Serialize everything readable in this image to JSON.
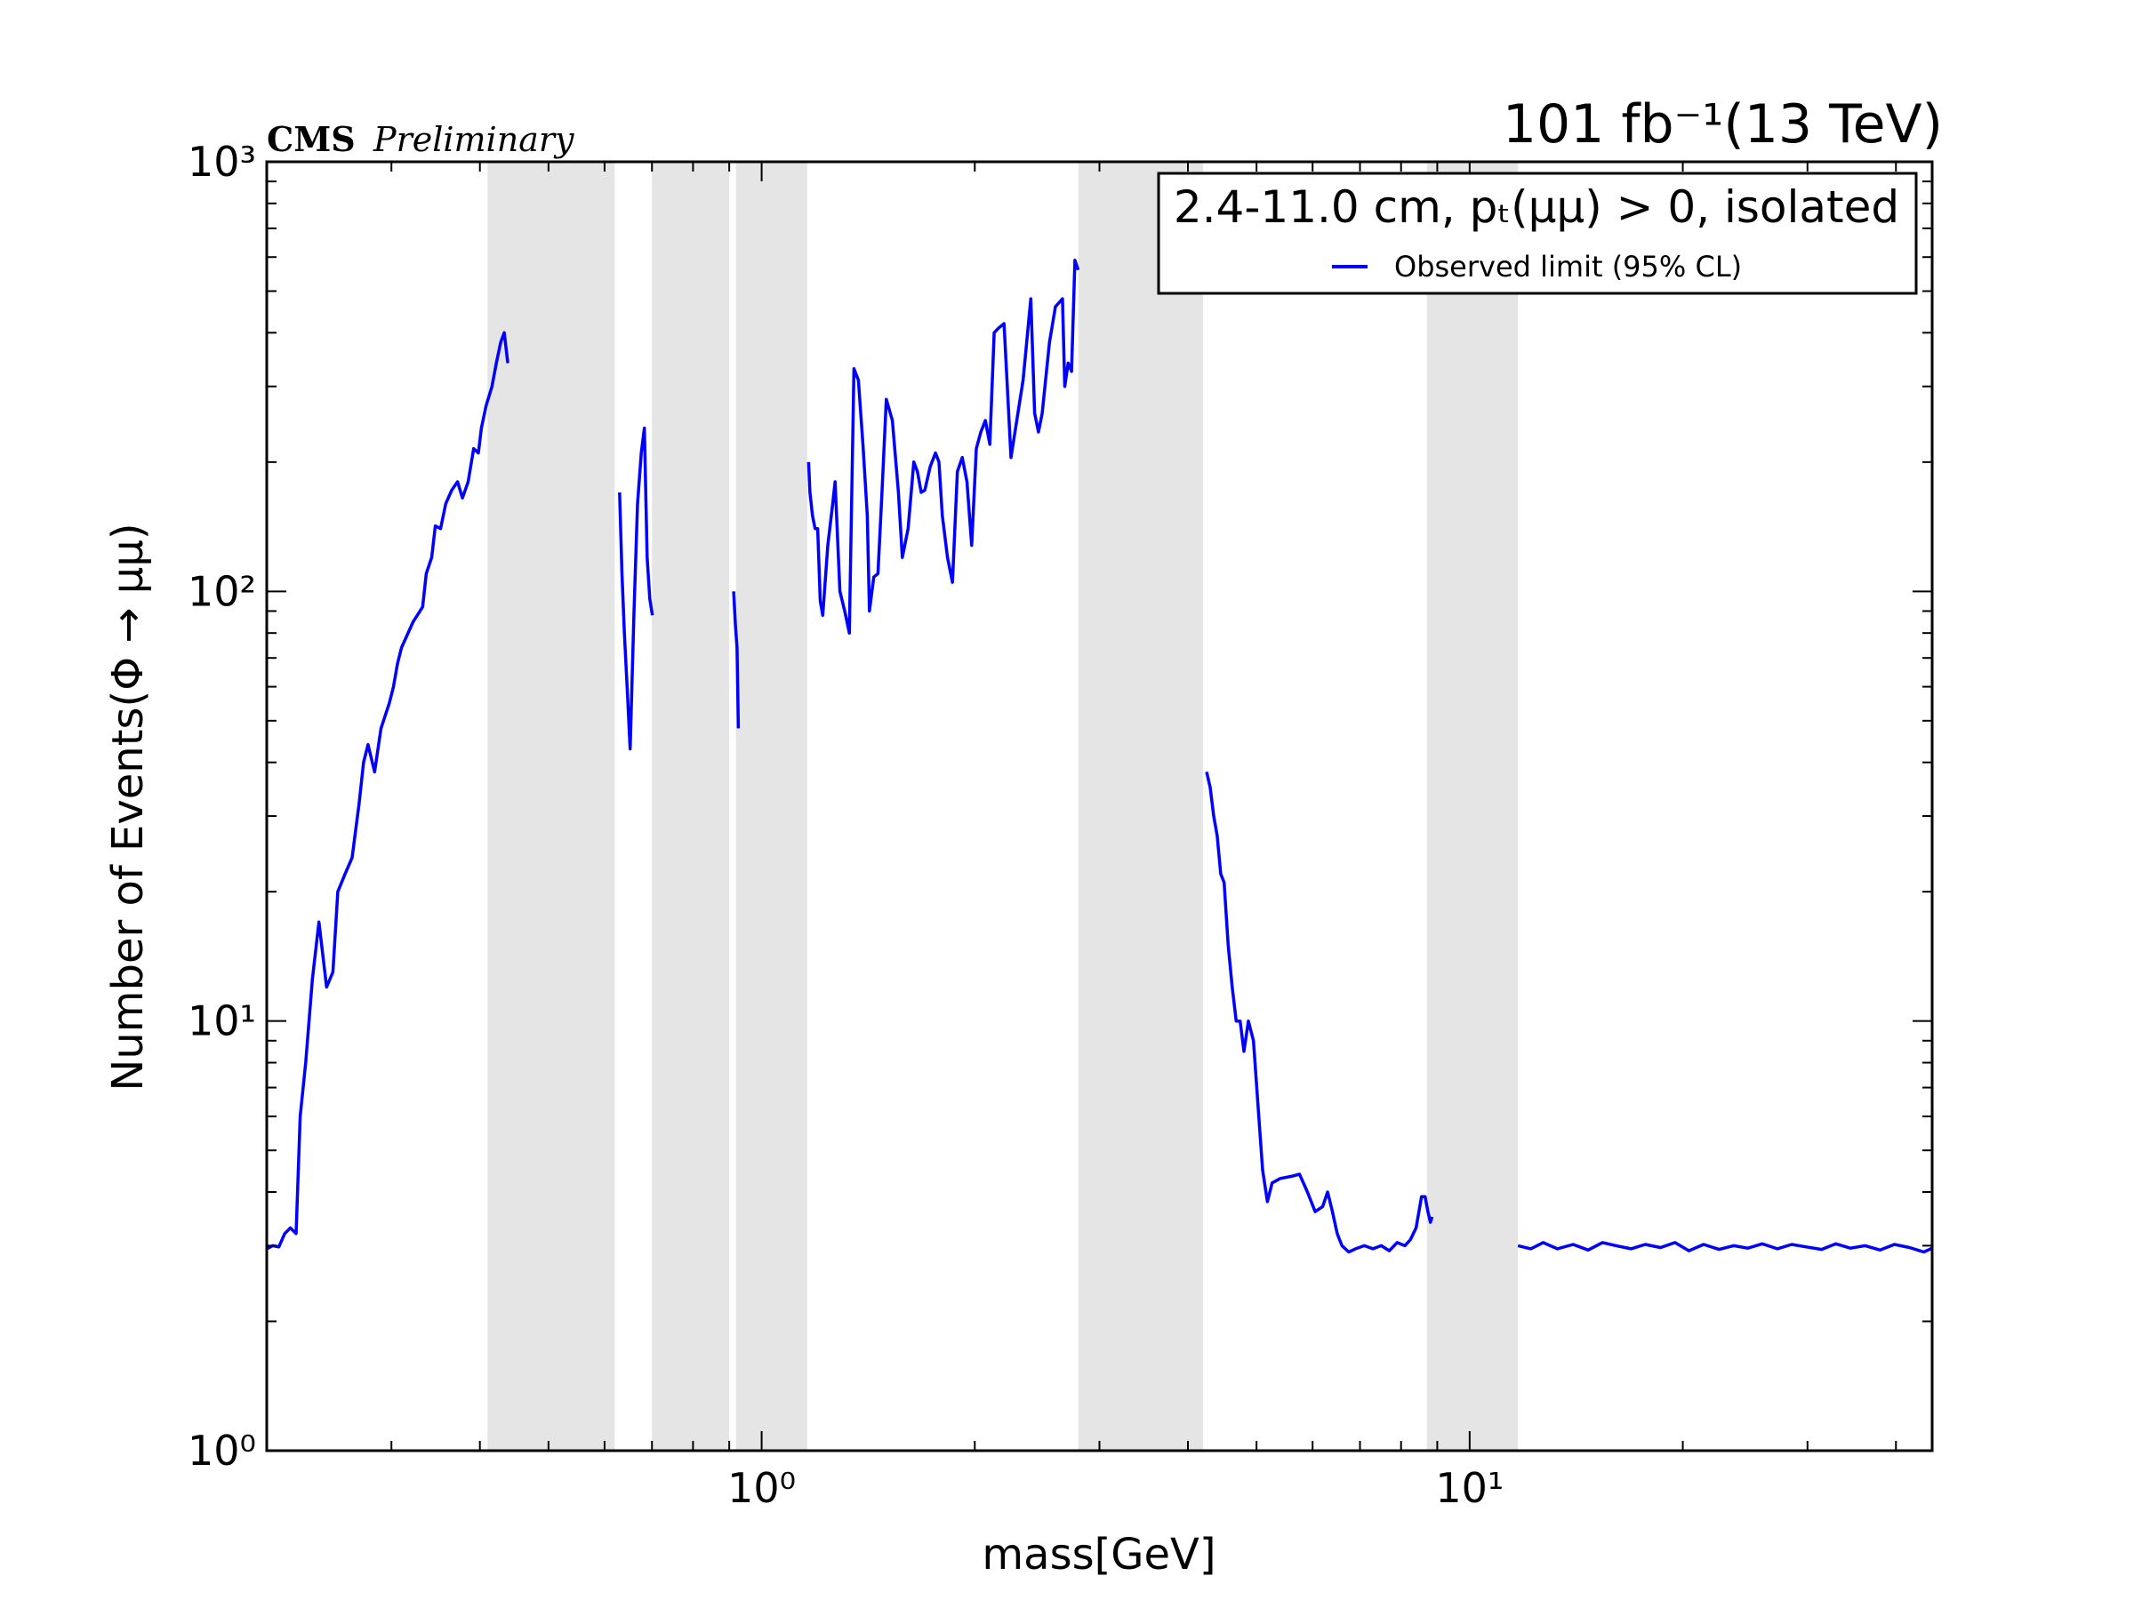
{
  "chart_data": {
    "type": "line",
    "title_left_bold": "CMS",
    "title_left_italic": "Preliminary",
    "title_right": "101 fb⁻¹(13 TeV)",
    "xlabel": "mass[GeV]",
    "ylabel": "Number of Events(Φ →  μμ)",
    "xscale": "log",
    "yscale": "log",
    "xlim": [
      0.2,
      45
    ],
    "ylim": [
      1,
      1000
    ],
    "xticks": [
      {
        "value": 1,
        "label": "10⁰"
      },
      {
        "value": 10,
        "label": "10¹"
      }
    ],
    "yticks": [
      {
        "value": 1,
        "label": "10⁰"
      },
      {
        "value": 10,
        "label": "10¹"
      },
      {
        "value": 100,
        "label": "10²"
      },
      {
        "value": 1000,
        "label": "10³"
      }
    ],
    "legend": {
      "title": "2.4-11.0 cm, pₜ(μμ) > 0, isolated",
      "entries": [
        {
          "label": "Observed limit (95% CL)",
          "color": "#0000ff"
        }
      ],
      "position": "top-right"
    },
    "excluded_bands": [
      [
        0.41,
        0.62
      ],
      [
        0.7,
        0.9
      ],
      [
        0.92,
        1.16
      ],
      [
        2.8,
        4.2
      ],
      [
        8.7,
        11.7
      ]
    ],
    "series": [
      {
        "name": "Observed limit (95% CL)",
        "color": "#0000ff",
        "segments": [
          [
            [
              0.2,
              2.95
            ],
            [
              0.204,
              3.0
            ],
            [
              0.208,
              2.98
            ],
            [
              0.212,
              3.2
            ],
            [
              0.216,
              3.3
            ],
            [
              0.22,
              3.2
            ],
            [
              0.223,
              6.0
            ],
            [
              0.227,
              8.0
            ],
            [
              0.232,
              12.5
            ],
            [
              0.237,
              17.0
            ],
            [
              0.243,
              12.0
            ],
            [
              0.248,
              13.0
            ],
            [
              0.252,
              20.0
            ],
            [
              0.258,
              22.0
            ],
            [
              0.264,
              24.0
            ],
            [
              0.27,
              32.0
            ],
            [
              0.274,
              40.0
            ],
            [
              0.278,
              44.0
            ],
            [
              0.284,
              38.0
            ],
            [
              0.29,
              48.0
            ],
            [
              0.298,
              55.0
            ],
            [
              0.302,
              60.0
            ],
            [
              0.306,
              68.0
            ],
            [
              0.31,
              74.0
            ],
            [
              0.322,
              85.0
            ],
            [
              0.332,
              92.0
            ],
            [
              0.336,
              110.0
            ],
            [
              0.342,
              120.0
            ],
            [
              0.346,
              142.0
            ],
            [
              0.352,
              140.0
            ],
            [
              0.358,
              160.0
            ],
            [
              0.365,
              172.0
            ],
            [
              0.372,
              180.0
            ],
            [
              0.378,
              165.0
            ],
            [
              0.385,
              180.0
            ],
            [
              0.392,
              215.0
            ],
            [
              0.398,
              210.0
            ],
            [
              0.402,
              240.0
            ],
            [
              0.408,
              270.0
            ],
            [
              0.416,
              300.0
            ],
            [
              0.422,
              340.0
            ],
            [
              0.428,
              380.0
            ],
            [
              0.433,
              400.0
            ],
            [
              0.438,
              340.0
            ]
          ],
          [
            [
              0.63,
              170.0
            ],
            [
              0.635,
              110.0
            ],
            [
              0.64,
              80.0
            ],
            [
              0.647,
              56.0
            ],
            [
              0.652,
              43.0
            ],
            [
              0.66,
              88.0
            ],
            [
              0.668,
              160.0
            ],
            [
              0.676,
              210.0
            ],
            [
              0.683,
              240.0
            ],
            [
              0.689,
              120.0
            ],
            [
              0.695,
              96.0
            ],
            [
              0.701,
              88.0
            ]
          ],
          [
            [
              0.913,
              100.0
            ],
            [
              0.918,
              84.0
            ],
            [
              0.923,
              74.0
            ],
            [
              0.927,
              48.0
            ]
          ],
          [
            [
              1.165,
              200.0
            ],
            [
              1.17,
              170.0
            ],
            [
              1.18,
              150.0
            ],
            [
              1.19,
              140.0
            ],
            [
              1.2,
              140.0
            ],
            [
              1.21,
              95.0
            ],
            [
              1.22,
              88.0
            ],
            [
              1.24,
              128.0
            ],
            [
              1.26,
              160.0
            ],
            [
              1.27,
              180.0
            ],
            [
              1.29,
              100.0
            ],
            [
              1.31,
              90.0
            ],
            [
              1.33,
              80.0
            ],
            [
              1.35,
              330.0
            ],
            [
              1.37,
              310.0
            ],
            [
              1.39,
              220.0
            ],
            [
              1.41,
              150.0
            ],
            [
              1.42,
              90.0
            ],
            [
              1.44,
              108.0
            ],
            [
              1.46,
              110.0
            ],
            [
              1.48,
              175.0
            ],
            [
              1.5,
              280.0
            ],
            [
              1.53,
              250.0
            ],
            [
              1.56,
              170.0
            ],
            [
              1.58,
              120.0
            ],
            [
              1.61,
              140.0
            ],
            [
              1.64,
              200.0
            ],
            [
              1.66,
              190.0
            ],
            [
              1.68,
              170.0
            ],
            [
              1.7,
              172.0
            ],
            [
              1.73,
              195.0
            ],
            [
              1.76,
              210.0
            ],
            [
              1.78,
              200.0
            ],
            [
              1.8,
              150.0
            ],
            [
              1.83,
              120.0
            ],
            [
              1.86,
              105.0
            ],
            [
              1.89,
              190.0
            ],
            [
              1.92,
              205.0
            ],
            [
              1.95,
              180.0
            ],
            [
              1.98,
              128.0
            ],
            [
              2.01,
              215.0
            ],
            [
              2.04,
              235.0
            ],
            [
              2.07,
              250.0
            ],
            [
              2.1,
              220.0
            ],
            [
              2.13,
              400.0
            ],
            [
              2.16,
              410.0
            ],
            [
              2.2,
              420.0
            ],
            [
              2.25,
              205.0
            ],
            [
              2.34,
              310.0
            ],
            [
              2.4,
              480.0
            ],
            [
              2.43,
              260.0
            ],
            [
              2.46,
              235.0
            ],
            [
              2.49,
              260.0
            ],
            [
              2.55,
              380.0
            ],
            [
              2.6,
              460.0
            ],
            [
              2.66,
              480.0
            ],
            [
              2.68,
              300.0
            ],
            [
              2.71,
              340.0
            ],
            [
              2.74,
              325.0
            ],
            [
              2.77,
              590.0
            ],
            [
              2.8,
              560.0
            ]
          ],
          [
            [
              4.25,
              38.0
            ],
            [
              4.3,
              35.0
            ],
            [
              4.35,
              30.0
            ],
            [
              4.4,
              27.0
            ],
            [
              4.45,
              22.0
            ],
            [
              4.5,
              21.0
            ],
            [
              4.56,
              15.0
            ],
            [
              4.62,
              12.0
            ],
            [
              4.68,
              10.0
            ],
            [
              4.74,
              10.0
            ],
            [
              4.8,
              8.5
            ],
            [
              4.87,
              10.0
            ],
            [
              4.95,
              9.0
            ],
            [
              5.02,
              6.5
            ],
            [
              5.1,
              4.5
            ],
            [
              5.18,
              3.8
            ],
            [
              5.26,
              4.2
            ],
            [
              5.4,
              4.3
            ],
            [
              5.6,
              4.35
            ],
            [
              5.75,
              4.4
            ],
            [
              5.9,
              4.0
            ],
            [
              6.05,
              3.6
            ],
            [
              6.2,
              3.7
            ],
            [
              6.3,
              4.0
            ],
            [
              6.4,
              3.6
            ],
            [
              6.5,
              3.2
            ],
            [
              6.6,
              3.0
            ],
            [
              6.75,
              2.9
            ],
            [
              6.9,
              2.95
            ],
            [
              7.1,
              3.0
            ],
            [
              7.3,
              2.95
            ],
            [
              7.5,
              3.0
            ],
            [
              7.7,
              2.92
            ],
            [
              7.9,
              3.05
            ],
            [
              8.1,
              3.0
            ],
            [
              8.25,
              3.1
            ],
            [
              8.4,
              3.3
            ],
            [
              8.55,
              3.9
            ],
            [
              8.65,
              3.9
            ],
            [
              8.73,
              3.6
            ],
            [
              8.8,
              3.4
            ],
            [
              8.85,
              3.5
            ]
          ],
          [
            [
              11.7,
              3.0
            ],
            [
              12.2,
              2.95
            ],
            [
              12.7,
              3.05
            ],
            [
              13.3,
              2.95
            ],
            [
              14.0,
              3.02
            ],
            [
              14.7,
              2.93
            ],
            [
              15.4,
              3.05
            ],
            [
              16.1,
              3.0
            ],
            [
              16.9,
              2.95
            ],
            [
              17.7,
              3.02
            ],
            [
              18.6,
              2.97
            ],
            [
              19.5,
              3.05
            ],
            [
              20.4,
              2.92
            ],
            [
              21.4,
              3.02
            ],
            [
              22.5,
              2.94
            ],
            [
              23.6,
              3.0
            ],
            [
              24.7,
              2.96
            ],
            [
              25.9,
              3.03
            ],
            [
              27.2,
              2.95
            ],
            [
              28.5,
              3.02
            ],
            [
              29.9,
              2.98
            ],
            [
              31.4,
              2.94
            ],
            [
              32.9,
              3.03
            ],
            [
              34.5,
              2.96
            ],
            [
              36.2,
              3.0
            ],
            [
              38.0,
              2.93
            ],
            [
              39.8,
              3.02
            ],
            [
              41.8,
              2.97
            ],
            [
              43.8,
              2.9
            ],
            [
              45.0,
              2.96
            ]
          ]
        ]
      }
    ]
  }
}
